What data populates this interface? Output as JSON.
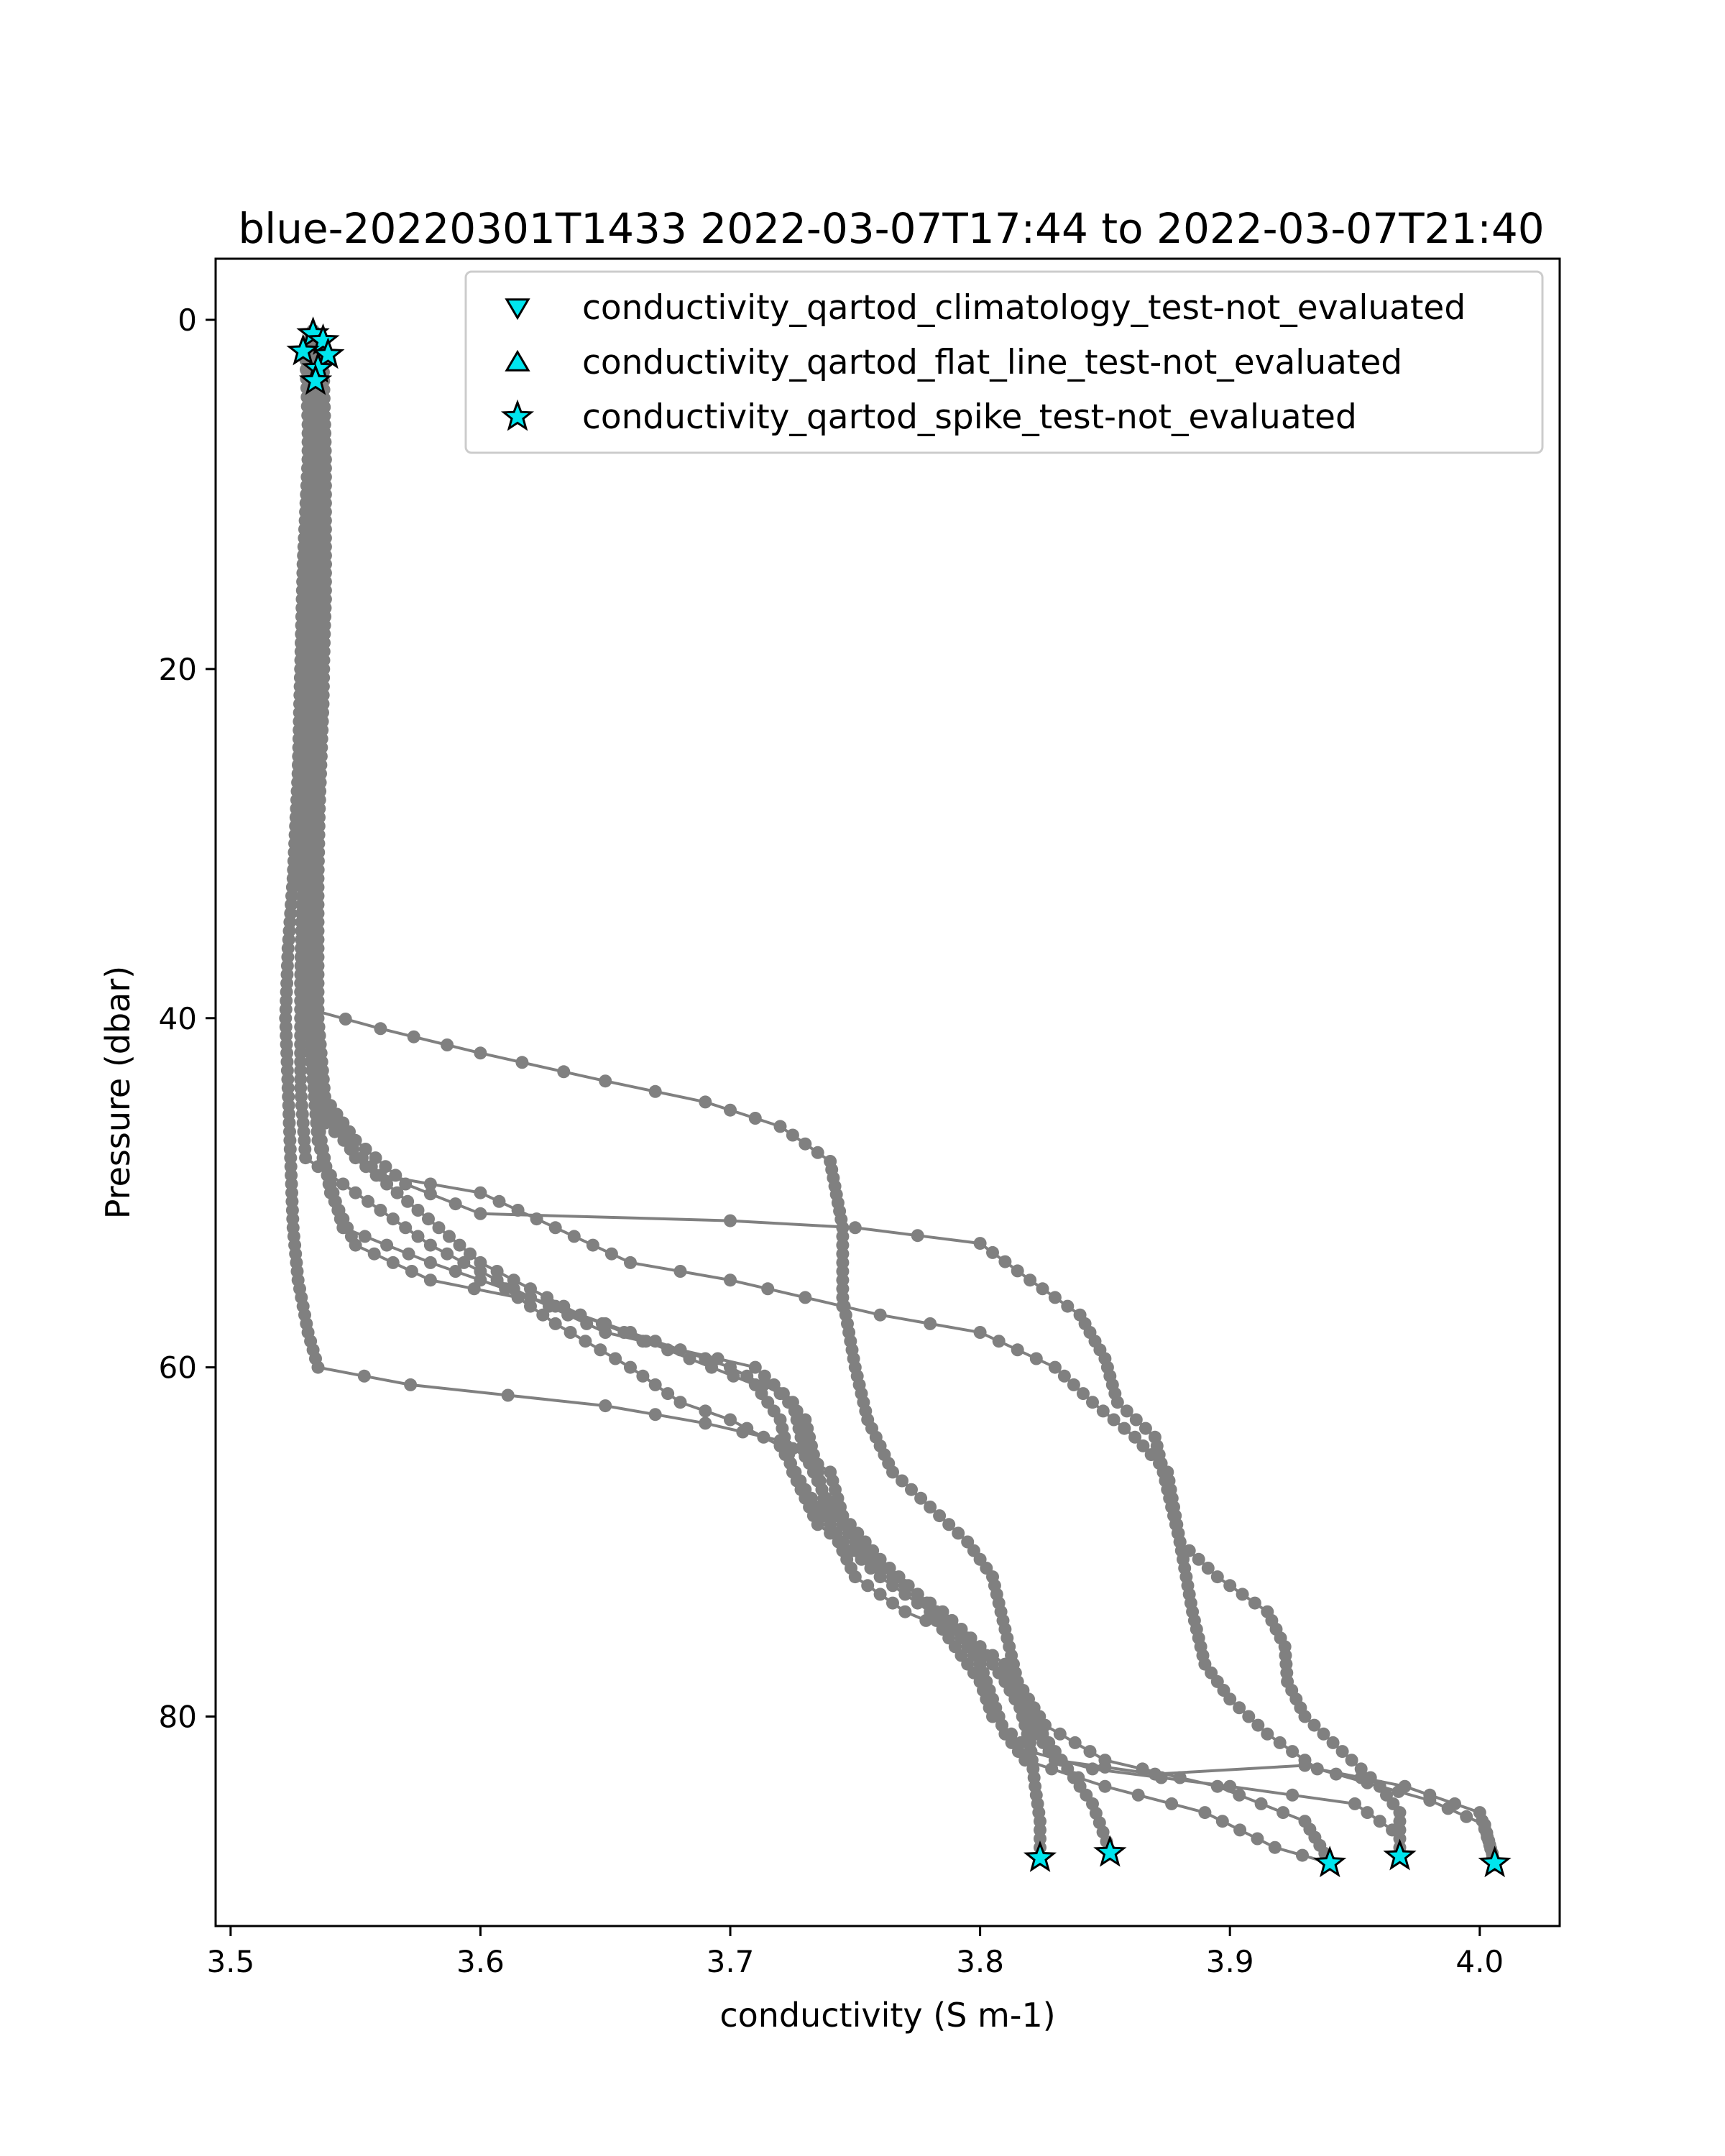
{
  "chart_data": {
    "type": "scatter",
    "title": "blue-20220301T1433 2022-03-07T17:44 to 2022-03-07T21:40",
    "xlabel": "conductivity (S m-1)",
    "ylabel": "Pressure (dbar)",
    "xlim": [
      3.494,
      4.032
    ],
    "ylim": [
      92.0,
      -3.5
    ],
    "y_inverted": true,
    "grid": false,
    "legend_position": "top-right",
    "x_ticks": [
      3.5,
      3.6,
      3.7,
      3.8,
      3.9,
      4.0
    ],
    "x_tick_labels": [
      "3.5",
      "3.6",
      "3.7",
      "3.8",
      "3.9",
      "4.0"
    ],
    "y_ticks": [
      0,
      20,
      40,
      60,
      80
    ],
    "y_tick_labels": [
      "0",
      "20",
      "40",
      "60",
      "80"
    ],
    "profile_color": "#808080",
    "flag_fill_color": "#00e5ee",
    "flag_edge_color": "#000000",
    "legend": [
      {
        "label": "conductivity_qartod_climatology_test-not_evaluated",
        "marker": "triangle-down"
      },
      {
        "label": "conductivity_qartod_flat_line_test-not_evaluated",
        "marker": "triangle-up"
      },
      {
        "label": "conductivity_qartod_spike_test-not_evaluated",
        "marker": "star"
      }
    ],
    "series": [
      {
        "points": [
          [
            3.533,
            0.6
          ],
          [
            3.532,
            3
          ],
          [
            3.531,
            8
          ],
          [
            3.529,
            14
          ],
          [
            3.528,
            20
          ],
          [
            3.527,
            26
          ],
          [
            3.525,
            32
          ],
          [
            3.523,
            36
          ],
          [
            3.522,
            40
          ],
          [
            3.523,
            44
          ],
          [
            3.524,
            48
          ],
          [
            3.525,
            52
          ],
          [
            3.527,
            55
          ],
          [
            3.531,
            58
          ],
          [
            3.535,
            60
          ],
          [
            3.572,
            61
          ],
          [
            3.65,
            62.2
          ],
          [
            3.69,
            63.2
          ],
          [
            3.72,
            64.2
          ],
          [
            3.74,
            66
          ],
          [
            3.745,
            68.5
          ],
          [
            3.76,
            71
          ],
          [
            3.775,
            73
          ],
          [
            3.79,
            75
          ],
          [
            3.805,
            77
          ],
          [
            3.815,
            79
          ],
          [
            3.82,
            81.5
          ],
          [
            3.822,
            84
          ],
          [
            3.824,
            86
          ],
          [
            3.824,
            88
          ]
        ]
      },
      {
        "points": [
          [
            3.532,
            1
          ],
          [
            3.533,
            4
          ],
          [
            3.534,
            10
          ],
          [
            3.534,
            18
          ],
          [
            3.533,
            26
          ],
          [
            3.532,
            32
          ],
          [
            3.531,
            38
          ],
          [
            3.532,
            42
          ],
          [
            3.535,
            47
          ],
          [
            3.545,
            52
          ],
          [
            3.58,
            54
          ],
          [
            3.62,
            56
          ],
          [
            3.66,
            58
          ],
          [
            3.7,
            60
          ],
          [
            3.72,
            61.5
          ],
          [
            3.73,
            63
          ],
          [
            3.735,
            66
          ],
          [
            3.74,
            69
          ],
          [
            3.75,
            72
          ],
          [
            3.77,
            74
          ],
          [
            3.795,
            75.5
          ],
          [
            3.81,
            77
          ],
          [
            3.818,
            79
          ],
          [
            3.825,
            81
          ],
          [
            3.835,
            83
          ],
          [
            3.845,
            85
          ],
          [
            3.852,
            87.7
          ]
        ]
      },
      {
        "points": [
          [
            3.534,
            1
          ],
          [
            3.535,
            5
          ],
          [
            3.535,
            12
          ],
          [
            3.534,
            20
          ],
          [
            3.533,
            28
          ],
          [
            3.532,
            34
          ],
          [
            3.532,
            39.5
          ],
          [
            3.56,
            40.6
          ],
          [
            3.6,
            42
          ],
          [
            3.65,
            43.6
          ],
          [
            3.69,
            44.8
          ],
          [
            3.72,
            46.2
          ],
          [
            3.74,
            48.2
          ],
          [
            3.745,
            52
          ],
          [
            3.745,
            56
          ],
          [
            3.75,
            60
          ],
          [
            3.755,
            63
          ],
          [
            3.765,
            66
          ],
          [
            3.78,
            68
          ],
          [
            3.795,
            70
          ],
          [
            3.805,
            72
          ],
          [
            3.81,
            75
          ],
          [
            3.815,
            78
          ],
          [
            3.826,
            80.5
          ],
          [
            3.85,
            82.5
          ],
          [
            3.895,
            84
          ],
          [
            3.93,
            86
          ],
          [
            3.94,
            88.3
          ]
        ]
      },
      {
        "points": [
          [
            3.535,
            1.2
          ],
          [
            3.536,
            5
          ],
          [
            3.537,
            12
          ],
          [
            3.536,
            20
          ],
          [
            3.534,
            28
          ],
          [
            3.533,
            34
          ],
          [
            3.533,
            40
          ],
          [
            3.535,
            44
          ],
          [
            3.55,
            47
          ],
          [
            3.57,
            49.5
          ],
          [
            3.6,
            51.2
          ],
          [
            3.7,
            51.6
          ],
          [
            3.75,
            52
          ],
          [
            3.8,
            52.9
          ],
          [
            3.82,
            55
          ],
          [
            3.84,
            57
          ],
          [
            3.85,
            59.5
          ],
          [
            3.855,
            62
          ],
          [
            3.87,
            64
          ],
          [
            3.875,
            67
          ],
          [
            3.88,
            70
          ],
          [
            3.895,
            72
          ],
          [
            3.915,
            74
          ],
          [
            3.922,
            76
          ],
          [
            3.923,
            78
          ],
          [
            3.93,
            80
          ],
          [
            3.945,
            82
          ],
          [
            3.96,
            84
          ],
          [
            3.968,
            85.5
          ],
          [
            3.968,
            88
          ]
        ]
      },
      {
        "points": [
          [
            3.536,
            1.5
          ],
          [
            3.537,
            6
          ],
          [
            3.538,
            14
          ],
          [
            3.537,
            22
          ],
          [
            3.535,
            30
          ],
          [
            3.534,
            36
          ],
          [
            3.534,
            42
          ],
          [
            3.538,
            46
          ],
          [
            3.56,
            49
          ],
          [
            3.6,
            50
          ],
          [
            3.63,
            52
          ],
          [
            3.66,
            54
          ],
          [
            3.7,
            55
          ],
          [
            3.73,
            56
          ],
          [
            3.76,
            57
          ],
          [
            3.8,
            58
          ],
          [
            3.83,
            60
          ],
          [
            3.845,
            62
          ],
          [
            3.862,
            64
          ],
          [
            3.875,
            66
          ],
          [
            3.88,
            70
          ],
          [
            3.885,
            74
          ],
          [
            3.89,
            77
          ],
          [
            3.9,
            79
          ],
          [
            3.915,
            81
          ],
          [
            3.935,
            83
          ],
          [
            3.97,
            84
          ],
          [
            4.0,
            85.5
          ],
          [
            4.006,
            88.3
          ]
        ]
      },
      {
        "points": [
          [
            3.53,
            1.8
          ],
          [
            3.531,
            6
          ],
          [
            3.531,
            14
          ],
          [
            3.53,
            22
          ],
          [
            3.529,
            30
          ],
          [
            3.528,
            38
          ],
          [
            3.528,
            44
          ],
          [
            3.53,
            48
          ],
          [
            3.55,
            50
          ],
          [
            3.58,
            53
          ],
          [
            3.62,
            56
          ],
          [
            3.65,
            58
          ],
          [
            3.68,
            59
          ],
          [
            3.71,
            60
          ],
          [
            3.725,
            62
          ],
          [
            3.73,
            65
          ],
          [
            3.74,
            68
          ],
          [
            3.75,
            70
          ],
          [
            3.765,
            72
          ],
          [
            3.785,
            74
          ],
          [
            3.8,
            76
          ],
          [
            3.81,
            78
          ],
          [
            3.818,
            80
          ],
          [
            3.83,
            82.5
          ],
          [
            3.87,
            83.3
          ],
          [
            3.93,
            82.8
          ],
          [
            3.98,
            84.8
          ],
          [
            4.002,
            86.2
          ],
          [
            4.006,
            88.5
          ]
        ]
      },
      {
        "points": [
          [
            3.537,
            2
          ],
          [
            3.538,
            8
          ],
          [
            3.538,
            16
          ],
          [
            3.536,
            24
          ],
          [
            3.535,
            32
          ],
          [
            3.535,
            40
          ],
          [
            3.538,
            45
          ],
          [
            3.55,
            48
          ],
          [
            3.575,
            51
          ],
          [
            3.6,
            54
          ],
          [
            3.64,
            57
          ],
          [
            3.675,
            59
          ],
          [
            3.71,
            61
          ],
          [
            3.72,
            63
          ],
          [
            3.725,
            66
          ],
          [
            3.735,
            69
          ],
          [
            3.755,
            71
          ],
          [
            3.775,
            73
          ],
          [
            3.79,
            75
          ],
          [
            3.8,
            77
          ],
          [
            3.805,
            79
          ],
          [
            3.81,
            81
          ],
          [
            3.818,
            82.5
          ],
          [
            3.85,
            84
          ],
          [
            3.89,
            85.5
          ],
          [
            3.918,
            87.5
          ],
          [
            3.94,
            88.4
          ]
        ]
      },
      {
        "points": [
          [
            3.535,
            2.5
          ],
          [
            3.536,
            8
          ],
          [
            3.536,
            16
          ],
          [
            3.535,
            24
          ],
          [
            3.534,
            32
          ],
          [
            3.533,
            40
          ],
          [
            3.535,
            46
          ],
          [
            3.54,
            50
          ],
          [
            3.55,
            53
          ],
          [
            3.58,
            55
          ],
          [
            3.615,
            56
          ],
          [
            3.63,
            57.5
          ],
          [
            3.66,
            60
          ],
          [
            3.68,
            62
          ],
          [
            3.7,
            63
          ],
          [
            3.72,
            64.5
          ],
          [
            3.73,
            67
          ],
          [
            3.745,
            70
          ],
          [
            3.76,
            72
          ],
          [
            3.78,
            74
          ],
          [
            3.79,
            76
          ],
          [
            3.8,
            78
          ],
          [
            3.805,
            80
          ],
          [
            3.82,
            82
          ],
          [
            3.845,
            83
          ],
          [
            3.9,
            84
          ],
          [
            3.95,
            85
          ],
          [
            3.965,
            86.5
          ]
        ]
      }
    ],
    "flagged_points": [
      {
        "marker": "star",
        "points": [
          [
            3.533,
            0.8
          ],
          [
            3.537,
            1.2
          ],
          [
            3.529,
            1.8
          ],
          [
            3.539,
            2
          ],
          [
            3.535,
            2.8
          ],
          [
            3.534,
            3.5
          ],
          [
            3.824,
            88.1
          ],
          [
            3.852,
            87.8
          ],
          [
            3.94,
            88.4
          ],
          [
            3.968,
            88
          ],
          [
            4.006,
            88.4
          ]
        ]
      }
    ]
  }
}
